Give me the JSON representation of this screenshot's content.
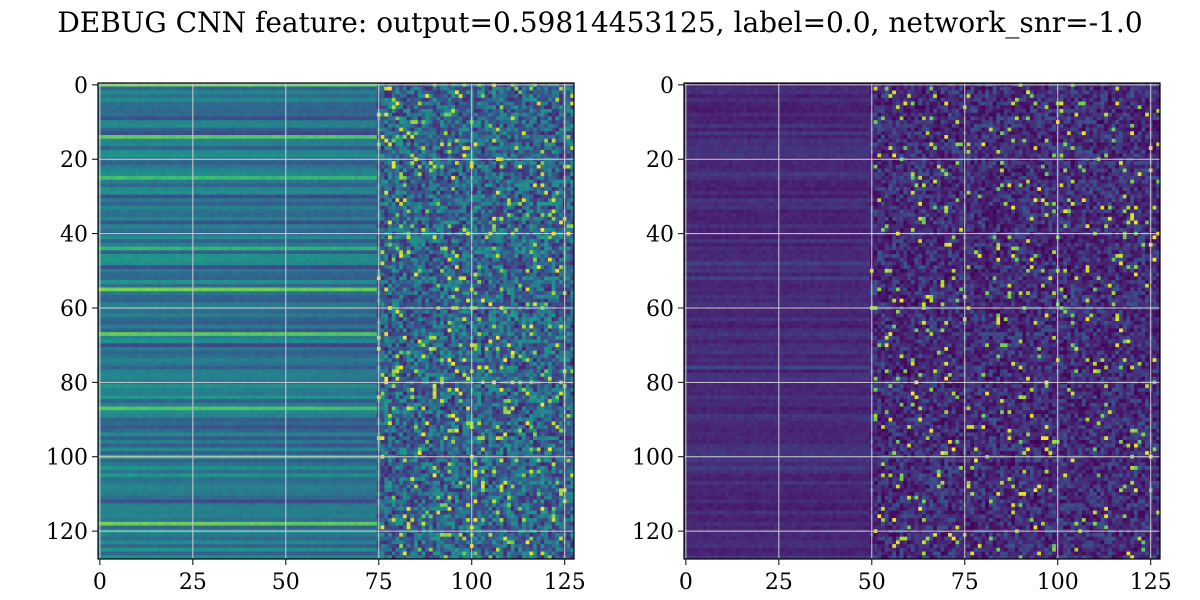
{
  "title": "DEBUG CNN feature: output=0.59814453125, label=0.0, network_snr=-1.0",
  "chart_data": [
    {
      "type": "heatmap",
      "title": "",
      "xlabel": "",
      "ylabel": "",
      "rows": 128,
      "cols": 128,
      "xlim": [
        0,
        127
      ],
      "ylim": [
        127,
        0
      ],
      "xticks": [
        0,
        25,
        50,
        75,
        100,
        125
      ],
      "yticks": [
        0,
        20,
        40,
        60,
        80,
        100,
        120
      ],
      "grid": true,
      "colormap": "viridis",
      "description": "Per-row horizontal bands for columns 0-74; noisy speckle for columns 75-127 with bright yellow points around rows 60-68 and 100-104",
      "value_range": [
        0,
        1
      ],
      "noise_start_col": 75,
      "baseline_level": 0.42,
      "bright_rows": [
        0,
        14,
        25,
        44,
        55,
        67,
        87,
        100,
        118
      ],
      "dark_rows": [
        9,
        13,
        30,
        37,
        49,
        70,
        92,
        112
      ]
    },
    {
      "type": "heatmap",
      "title": "",
      "xlabel": "",
      "ylabel": "",
      "rows": 128,
      "cols": 128,
      "xlim": [
        0,
        127
      ],
      "ylim": [
        127,
        0
      ],
      "xticks": [
        0,
        25,
        50,
        75,
        100,
        125
      ],
      "yticks": [
        0,
        20,
        40,
        60,
        80,
        100,
        120
      ],
      "grid": true,
      "colormap": "viridis",
      "description": "Mostly dark purple with faint horizontal bands for columns 0-49; sparse noisy speckle for columns 50-127 with occasional bright green/yellow points",
      "value_range": [
        0,
        1
      ],
      "noise_start_col": 50,
      "baseline_level": 0.12,
      "bright_rows": [
        24,
        48,
        52,
        76,
        103
      ],
      "dark_rows": []
    }
  ]
}
